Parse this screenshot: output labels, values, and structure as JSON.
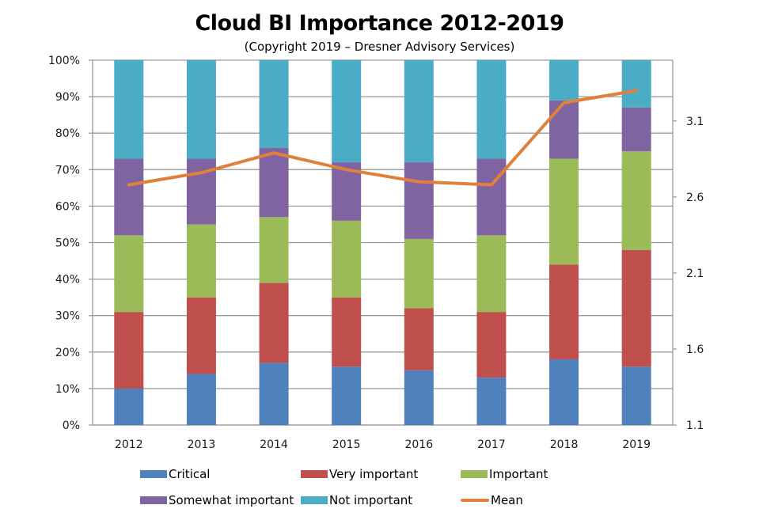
{
  "chart_data": {
    "type": "bar",
    "stacked": true,
    "title": "Cloud BI Importance 2012-2019",
    "subtitle": "(Copyright 2019 – Dresner Advisory Services)",
    "xlabel": "",
    "ylabel": "",
    "categories": [
      "2012",
      "2013",
      "2014",
      "2015",
      "2016",
      "2017",
      "2018",
      "2019"
    ],
    "ylim": [
      0,
      100
    ],
    "y_ticks": [
      "0%",
      "10%",
      "20%",
      "30%",
      "40%",
      "50%",
      "60%",
      "70%",
      "80%",
      "90%",
      "100%"
    ],
    "y2lim": [
      1.1,
      3.5
    ],
    "y2_ticks": [
      "1.1",
      "1.6",
      "2.1",
      "2.6",
      "3.1"
    ],
    "grid": true,
    "legend_position": "bottom",
    "series": [
      {
        "name": "Critical",
        "color": "#4F81BD",
        "values": [
          10,
          14,
          17,
          16,
          15,
          13,
          18,
          16
        ]
      },
      {
        "name": "Very important",
        "color": "#C0504D",
        "values": [
          21,
          21,
          22,
          19,
          17,
          18,
          26,
          32
        ]
      },
      {
        "name": "Important",
        "color": "#9BBB59",
        "values": [
          21,
          20,
          18,
          21,
          19,
          21,
          29,
          27
        ]
      },
      {
        "name": "Somewhat important",
        "color": "#8064A2",
        "values": [
          21,
          18,
          19,
          16,
          21,
          21,
          16,
          12
        ]
      },
      {
        "name": "Not important",
        "color": "#4BACC6",
        "values": [
          27,
          27,
          24,
          28,
          28,
          27,
          11,
          13
        ]
      }
    ],
    "line_series": {
      "name": "Mean",
      "color": "#E0803A",
      "axis": "secondary",
      "values": [
        2.68,
        2.76,
        2.89,
        2.78,
        2.7,
        2.68,
        3.22,
        3.3
      ]
    }
  }
}
